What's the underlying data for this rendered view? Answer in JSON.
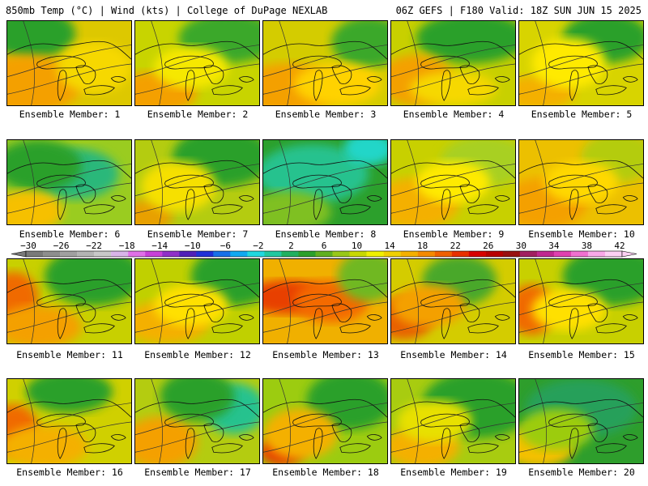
{
  "header": {
    "left": "850mb Temp (°C) | Wind (kts) | College of DuPage NEXLAB",
    "right": "06Z GEFS | F180 Valid: 18Z SUN JUN 15 2025"
  },
  "caption_prefix": "Ensemble Member: ",
  "members": [
    {
      "num": "1",
      "base": "#ddc800",
      "blobs": [
        [
          "#2ca02c",
          0.2,
          0.15,
          0.35,
          0.3
        ],
        [
          "#f4a000",
          0.15,
          0.75,
          0.45,
          0.35
        ],
        [
          "#f6d800",
          0.7,
          0.55,
          0.3,
          0.3
        ]
      ]
    },
    {
      "num": "2",
      "base": "#c8d400",
      "blobs": [
        [
          "#3aa82a",
          0.75,
          0.2,
          0.4,
          0.3
        ],
        [
          "#f4a000",
          0.15,
          0.85,
          0.35,
          0.25
        ],
        [
          "#f6e800",
          0.45,
          0.55,
          0.3,
          0.25
        ]
      ]
    },
    {
      "num": "3",
      "base": "#d4cc00",
      "blobs": [
        [
          "#3aa82a",
          0.85,
          0.25,
          0.3,
          0.3
        ],
        [
          "#f4a000",
          0.2,
          0.8,
          0.4,
          0.3
        ],
        [
          "#ffd200",
          0.6,
          0.75,
          0.35,
          0.25
        ]
      ]
    },
    {
      "num": "4",
      "base": "#c8d000",
      "blobs": [
        [
          "#2ca02c",
          0.65,
          0.2,
          0.45,
          0.3
        ],
        [
          "#f4a000",
          0.2,
          0.7,
          0.3,
          0.3
        ],
        [
          "#f6d800",
          0.5,
          0.8,
          0.35,
          0.2
        ]
      ]
    },
    {
      "num": "5",
      "base": "#d8d400",
      "blobs": [
        [
          "#2ca02c",
          0.7,
          0.2,
          0.35,
          0.3
        ],
        [
          "#f4b000",
          0.15,
          0.85,
          0.3,
          0.2
        ],
        [
          "#ffea00",
          0.4,
          0.5,
          0.3,
          0.3
        ]
      ]
    },
    {
      "num": "6",
      "base": "#9acc20",
      "blobs": [
        [
          "#2cb87a",
          0.55,
          0.4,
          0.35,
          0.3
        ],
        [
          "#2ca02c",
          0.25,
          0.3,
          0.35,
          0.3
        ],
        [
          "#f6c000",
          0.15,
          0.85,
          0.3,
          0.25
        ]
      ]
    },
    {
      "num": "7",
      "base": "#b4cc10",
      "blobs": [
        [
          "#2ca02c",
          0.7,
          0.2,
          0.4,
          0.35
        ],
        [
          "#e8a000",
          0.1,
          0.9,
          0.2,
          0.2
        ],
        [
          "#f6e000",
          0.35,
          0.55,
          0.3,
          0.3
        ]
      ]
    },
    {
      "num": "8",
      "base": "#2ca02c",
      "blobs": [
        [
          "#26c28e",
          0.4,
          0.4,
          0.45,
          0.35
        ],
        [
          "#20d6c8",
          0.85,
          0.1,
          0.2,
          0.2
        ],
        [
          "#7fc020",
          0.2,
          0.85,
          0.35,
          0.25
        ]
      ]
    },
    {
      "num": "9",
      "base": "#c8d000",
      "blobs": [
        [
          "#f4b000",
          0.2,
          0.75,
          0.35,
          0.3
        ],
        [
          "#a8d020",
          0.75,
          0.25,
          0.35,
          0.3
        ],
        [
          "#ffea00",
          0.5,
          0.5,
          0.3,
          0.25
        ]
      ]
    },
    {
      "num": "10",
      "base": "#ecc000",
      "blobs": [
        [
          "#f4a000",
          0.2,
          0.75,
          0.35,
          0.3
        ],
        [
          "#b4cc10",
          0.8,
          0.2,
          0.3,
          0.3
        ],
        [
          "#ffd800",
          0.5,
          0.5,
          0.3,
          0.25
        ]
      ]
    },
    {
      "num": "11",
      "base": "#c8d000",
      "blobs": [
        [
          "#f06a00",
          0.05,
          0.45,
          0.2,
          0.3
        ],
        [
          "#2ca02c",
          0.7,
          0.2,
          0.4,
          0.35
        ],
        [
          "#f4a000",
          0.25,
          0.8,
          0.35,
          0.25
        ]
      ]
    },
    {
      "num": "12",
      "base": "#c0d000",
      "blobs": [
        [
          "#2ca02c",
          0.8,
          0.2,
          0.35,
          0.35
        ],
        [
          "#f4b000",
          0.25,
          0.75,
          0.35,
          0.25
        ],
        [
          "#ffe000",
          0.45,
          0.55,
          0.3,
          0.25
        ]
      ]
    },
    {
      "num": "13",
      "base": "#f0b000",
      "blobs": [
        [
          "#e84000",
          0.2,
          0.45,
          0.35,
          0.2
        ],
        [
          "#f46a00",
          0.55,
          0.5,
          0.3,
          0.25
        ],
        [
          "#6fb820",
          0.85,
          0.2,
          0.25,
          0.3
        ]
      ]
    },
    {
      "num": "14",
      "base": "#d4cc00",
      "blobs": [
        [
          "#e86000",
          0.1,
          0.7,
          0.25,
          0.25
        ],
        [
          "#4aa82a",
          0.55,
          0.25,
          0.3,
          0.3
        ],
        [
          "#f4a000",
          0.3,
          0.55,
          0.3,
          0.25
        ]
      ]
    },
    {
      "num": "15",
      "base": "#c8d000",
      "blobs": [
        [
          "#2ca02c",
          0.75,
          0.2,
          0.4,
          0.35
        ],
        [
          "#f06a00",
          0.1,
          0.6,
          0.2,
          0.3
        ],
        [
          "#ffe000",
          0.4,
          0.6,
          0.3,
          0.25
        ]
      ]
    },
    {
      "num": "16",
      "base": "#d0d000",
      "blobs": [
        [
          "#f06a00",
          0.05,
          0.6,
          0.2,
          0.3
        ],
        [
          "#2ca02c",
          0.5,
          0.15,
          0.35,
          0.25
        ],
        [
          "#f4b000",
          0.3,
          0.8,
          0.35,
          0.25
        ]
      ]
    },
    {
      "num": "17",
      "base": "#b4cc10",
      "blobs": [
        [
          "#26c28e",
          0.8,
          0.35,
          0.25,
          0.3
        ],
        [
          "#f4a000",
          0.2,
          0.75,
          0.3,
          0.3
        ],
        [
          "#2ca02c",
          0.5,
          0.2,
          0.3,
          0.3
        ]
      ]
    },
    {
      "num": "18",
      "base": "#9ccc10",
      "blobs": [
        [
          "#e84000",
          0.15,
          0.85,
          0.18,
          0.18
        ],
        [
          "#2ca02c",
          0.7,
          0.25,
          0.35,
          0.35
        ],
        [
          "#f4b000",
          0.3,
          0.65,
          0.3,
          0.3
        ]
      ]
    },
    {
      "num": "19",
      "base": "#a8cc10",
      "blobs": [
        [
          "#2ca02c",
          0.7,
          0.3,
          0.45,
          0.4
        ],
        [
          "#f4b000",
          0.25,
          0.8,
          0.3,
          0.25
        ],
        [
          "#e8e000",
          0.35,
          0.5,
          0.3,
          0.25
        ]
      ]
    },
    {
      "num": "20",
      "base": "#2e9e2c",
      "blobs": [
        [
          "#26a05a",
          0.5,
          0.35,
          0.45,
          0.35
        ],
        [
          "#f4c000",
          0.15,
          0.8,
          0.3,
          0.25
        ],
        [
          "#9ccc10",
          0.3,
          0.6,
          0.3,
          0.25
        ]
      ]
    }
  ],
  "colorbar": {
    "labels": [
      "−30",
      "−26",
      "−22",
      "−18",
      "−14",
      "−10",
      "−6",
      "−2",
      "2",
      "6",
      "10",
      "14",
      "18",
      "22",
      "26",
      "30",
      "34",
      "38",
      "42"
    ],
    "colors": [
      "#7a7a7a",
      "#8e8e8e",
      "#a0a0a0",
      "#b4b4b4",
      "#c8c8c8",
      "#d8b4e8",
      "#e070e8",
      "#c840d8",
      "#9030c8",
      "#5020b8",
      "#2030d8",
      "#1870e8",
      "#10a8f0",
      "#20d8e0",
      "#20c8a0",
      "#20b060",
      "#2ca02c",
      "#60b020",
      "#98c818",
      "#c8d800",
      "#f0f000",
      "#f0d000",
      "#f4b000",
      "#f48a00",
      "#f06000",
      "#e83000",
      "#d80000",
      "#b80000",
      "#981010",
      "#a02060",
      "#c02890",
      "#e040b0",
      "#f070d0",
      "#f8a8e8",
      "#fcd0f4"
    ]
  }
}
